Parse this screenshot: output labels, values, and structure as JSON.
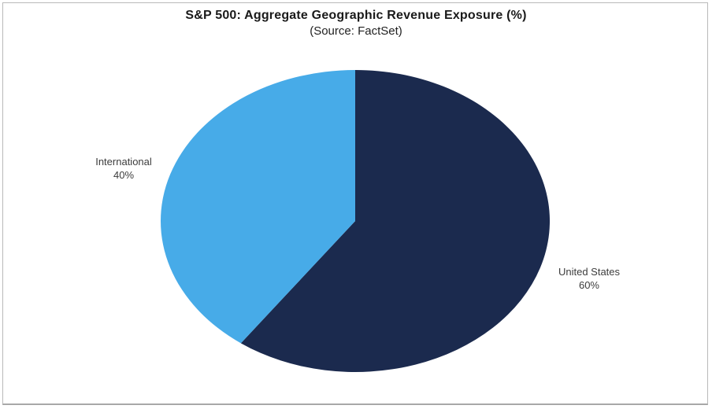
{
  "chart_data": {
    "type": "pie",
    "title": "S&P 500: Aggregate Geographic Revenue Exposure (%)",
    "subtitle": "(Source: FactSet)",
    "slices": [
      {
        "label": "United States",
        "value": 60,
        "pct_label": "60%",
        "color": "#1B2A4E"
      },
      {
        "label": "International",
        "value": 40,
        "pct_label": "40%",
        "color": "#47ABE8"
      }
    ],
    "start_angle_deg": -90,
    "direction": "clockwise",
    "legend": "none",
    "labels_position": "outside",
    "background": "#ffffff",
    "frame_border_color": "#b9b9b9",
    "label_text_color": "#3c3c3c"
  }
}
